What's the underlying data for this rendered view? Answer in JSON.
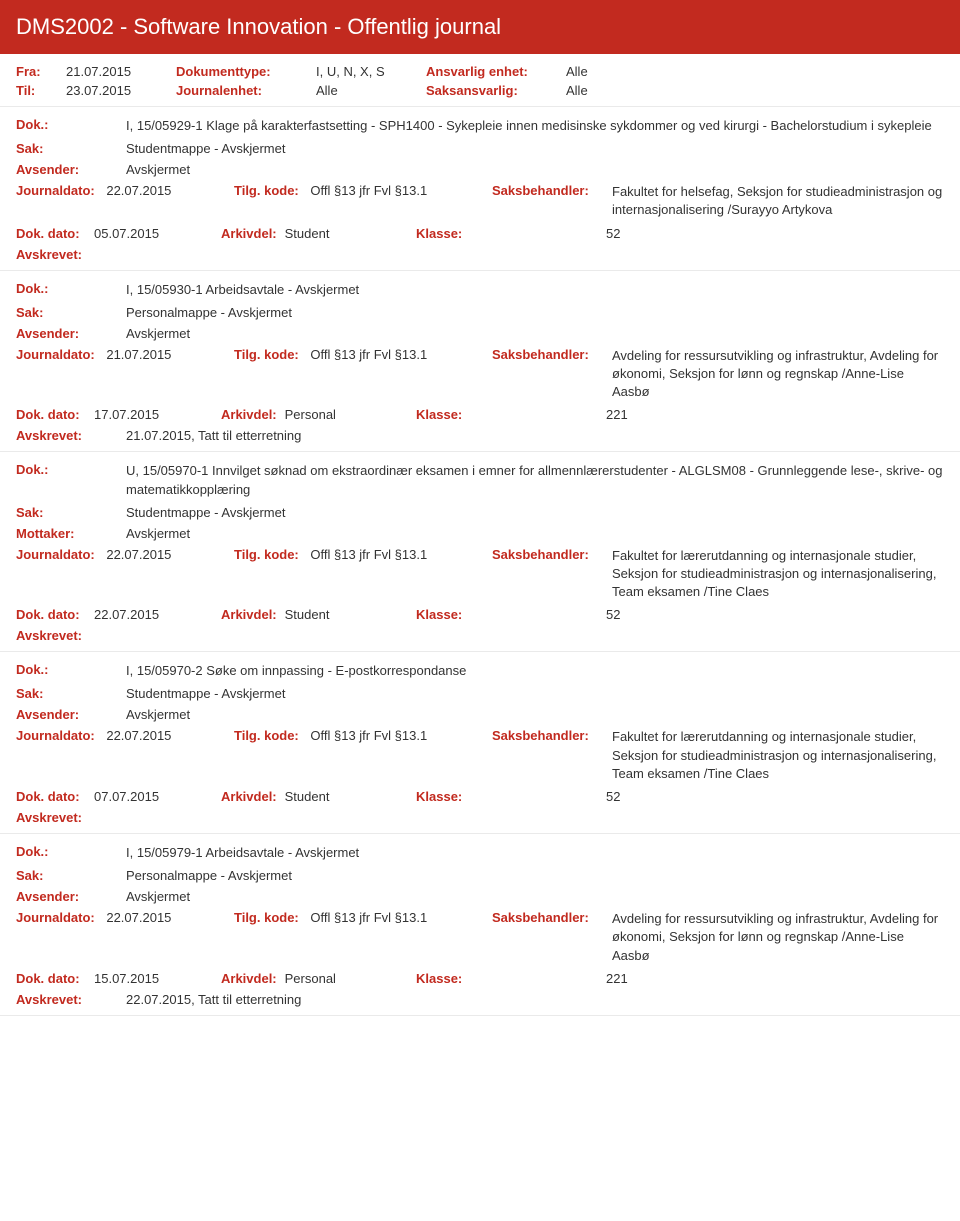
{
  "header": "DMS2002 - Software Innovation - Offentlig journal",
  "meta": {
    "fra_label": "Fra:",
    "fra": "21.07.2015",
    "til_label": "Til:",
    "til": "23.07.2015",
    "doktype_label": "Dokumenttype:",
    "doktype": "I, U, N, X, S",
    "journalenhet_label": "Journalenhet:",
    "journalenhet": "Alle",
    "ansvarlig_label": "Ansvarlig enhet:",
    "ansvarlig": "Alle",
    "saksansvarlig_label": "Saksansvarlig:",
    "saksansvarlig": "Alle"
  },
  "labels": {
    "dok": "Dok.:",
    "sak": "Sak:",
    "avsender": "Avsender:",
    "mottaker": "Mottaker:",
    "journaldato": "Journaldato:",
    "tilgkode": "Tilg. kode:",
    "saksbehandler": "Saksbehandler:",
    "dokdato": "Dok. dato:",
    "arkivdel": "Arkivdel:",
    "klasse": "Klasse:",
    "avskrevet": "Avskrevet:"
  },
  "entries": [
    {
      "dok": "I, 15/05929-1 Klage på karakterfastsetting - SPH1400 - Sykepleie innen medisinske sykdommer og ved kirurgi - Bachelorstudium i sykepleie",
      "sak": "Studentmappe - Avskjermet",
      "party_label": "Avsender:",
      "party": "Avskjermet",
      "journaldato": "22.07.2015",
      "tilgkode": "Offl §13 jfr Fvl §13.1",
      "saksbehandler": "Fakultet for helsefag, Seksjon for studieadministrasjon og internasjonalisering /Surayyo Artykova",
      "dokdato": "05.07.2015",
      "arkivdel": "Student",
      "klasse": "52",
      "avskrevet": ""
    },
    {
      "dok": "I, 15/05930-1 Arbeidsavtale - Avskjermet",
      "sak": "Personalmappe - Avskjermet",
      "party_label": "Avsender:",
      "party": "Avskjermet",
      "journaldato": "21.07.2015",
      "tilgkode": "Offl §13 jfr Fvl §13.1",
      "saksbehandler": "Avdeling for ressursutvikling og infrastruktur, Avdeling for økonomi, Seksjon for lønn og regnskap /Anne-Lise Aasbø",
      "dokdato": "17.07.2015",
      "arkivdel": "Personal",
      "klasse": "221",
      "avskrevet": "21.07.2015, Tatt til etterretning"
    },
    {
      "dok": "U, 15/05970-1 Innvilget søknad om ekstraordinær eksamen i emner for allmennlærerstudenter - ALGLSM08 - Grunnleggende lese-, skrive- og matematikkopplæring",
      "sak": "Studentmappe - Avskjermet",
      "party_label": "Mottaker:",
      "party": "Avskjermet",
      "journaldato": "22.07.2015",
      "tilgkode": "Offl §13 jfr Fvl §13.1",
      "saksbehandler": "Fakultet for lærerutdanning og internasjonale studier, Seksjon for studieadministrasjon og internasjonalisering, Team eksamen /Tine Claes",
      "dokdato": "22.07.2015",
      "arkivdel": "Student",
      "klasse": "52",
      "avskrevet": ""
    },
    {
      "dok": "I, 15/05970-2 Søke om innpassing - E-postkorrespondanse",
      "sak": "Studentmappe - Avskjermet",
      "party_label": "Avsender:",
      "party": "Avskjermet",
      "journaldato": "22.07.2015",
      "tilgkode": "Offl §13 jfr Fvl §13.1",
      "saksbehandler": "Fakultet for lærerutdanning og internasjonale studier, Seksjon for studieadministrasjon og internasjonalisering, Team eksamen /Tine Claes",
      "dokdato": "07.07.2015",
      "arkivdel": "Student",
      "klasse": "52",
      "avskrevet": ""
    },
    {
      "dok": "I, 15/05979-1 Arbeidsavtale - Avskjermet",
      "sak": "Personalmappe - Avskjermet",
      "party_label": "Avsender:",
      "party": "Avskjermet",
      "journaldato": "22.07.2015",
      "tilgkode": "Offl §13 jfr Fvl §13.1",
      "saksbehandler": "Avdeling for ressursutvikling og infrastruktur, Avdeling for økonomi, Seksjon for lønn og regnskap /Anne-Lise Aasbø",
      "dokdato": "15.07.2015",
      "arkivdel": "Personal",
      "klasse": "221",
      "avskrevet": "22.07.2015, Tatt til etterretning"
    }
  ]
}
